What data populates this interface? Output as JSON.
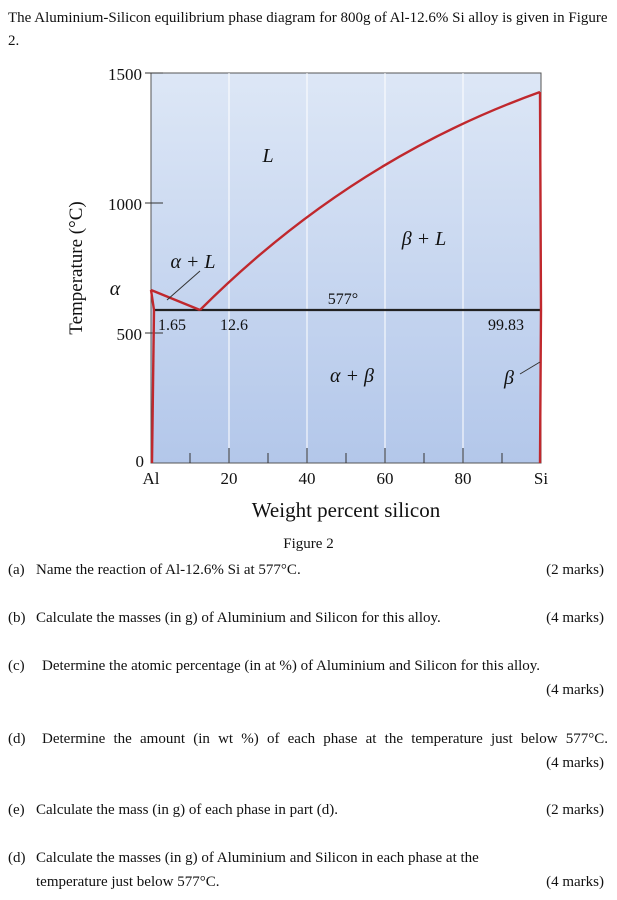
{
  "intro_text": "The Aluminium-Silicon equilibrium phase diagram for 800g of Al-12.6% Si alloy is given in Figure 2.",
  "figure": {
    "y_ticks": [
      "1500",
      "1000",
      "500",
      "0"
    ],
    "x_ticks": [
      "Al",
      "20",
      "40",
      "60",
      "80",
      "Si"
    ],
    "ylabel": "Temperature (°C)",
    "xlabel": "Weight percent silicon",
    "regions": {
      "liquid": "L",
      "alpha_liquid": "α + L",
      "beta_liquid": "β + L",
      "alpha_beta": "α + β",
      "alpha": "α",
      "beta": "β"
    },
    "annotations": {
      "eutectic_temp": "577°",
      "alpha_solubility": "1.65",
      "eutectic_comp": "12.6",
      "beta_solubility": "99.83"
    },
    "caption": "Figure 2",
    "colors": {
      "background": "#c9d9f0",
      "line": "#c0282d",
      "eutectic": "#222222"
    }
  },
  "questions": [
    {
      "label": "(a)",
      "text": "Name the reaction of Al-12.6% Si at 577°C.",
      "marks": "(2 marks)"
    },
    {
      "label": "(b)",
      "text": "Calculate the masses (in g) of Aluminium and Silicon for this alloy.",
      "marks": "(4 marks)"
    },
    {
      "label": "(c)",
      "text": "Determine the atomic percentage (in at %) of Aluminium and Silicon for this alloy.",
      "marks": "(4 marks)"
    },
    {
      "label": "(d)",
      "text": "Determine the amount (in wt %) of each phase at the temperature just below 577°C.",
      "marks": "(4 marks)"
    },
    {
      "label": "(e)",
      "text": "Calculate the mass (in g) of each phase in part (d).",
      "marks": "(2 marks)"
    },
    {
      "label": "(d)",
      "text": "Calculate the masses (in g) of Aluminium and Silicon in each phase at the temperature just below 577°C.",
      "marks": "(4 marks)"
    }
  ]
}
